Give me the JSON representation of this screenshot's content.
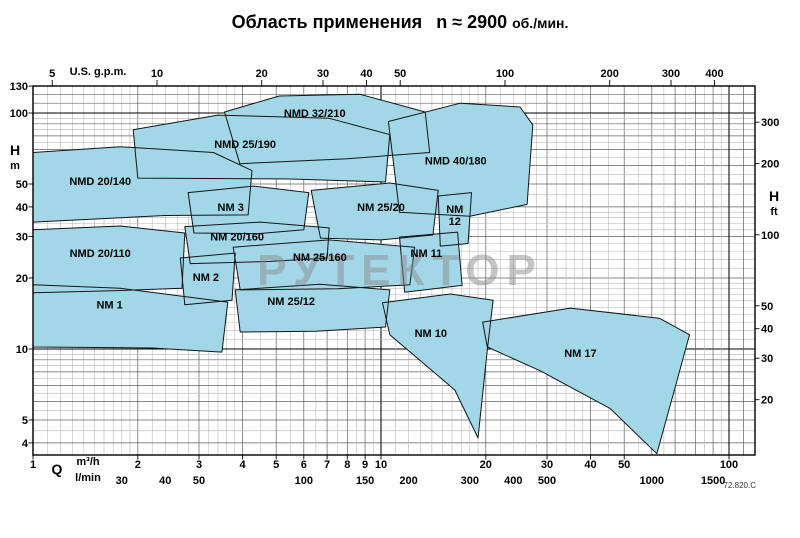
{
  "title": {
    "text": "Область применения",
    "speed": "n ≈ 2900",
    "speed_unit": "об./мин."
  },
  "footnote": "72.820.C",
  "watermark": "РУТЕКТОР",
  "colors": {
    "region_fill": "#a2d7e8",
    "region_stroke": "#141414",
    "watermark": "#8d8d8d",
    "grid_major": "#000000",
    "grid_minor": "#b5b5b5"
  },
  "chart_data": {
    "type": "area",
    "title": "Область применения n ≈ 2900 об./мин.",
    "grid": "log-log, on",
    "x_axis": {
      "quantity": "Q",
      "scale": "log",
      "range_m3h": [
        1,
        119
      ],
      "scales": [
        {
          "unit": "U.S. g.p.m.",
          "position": "top",
          "to_m3h": 0.2271,
          "ticks": [
            5,
            10,
            20,
            30,
            40,
            50,
            100,
            200,
            300,
            400
          ]
        },
        {
          "unit": "m³/h",
          "position": "bottom",
          "to_m3h": 1,
          "ticks": [
            1,
            2,
            3,
            4,
            5,
            6,
            7,
            8,
            9,
            10,
            20,
            30,
            40,
            50,
            100
          ]
        },
        {
          "unit": "l/min",
          "position": "bottom2",
          "to_m3h": 0.06,
          "ticks": [
            30,
            40,
            50,
            100,
            150,
            200,
            300,
            400,
            500,
            1000,
            1500
          ]
        }
      ]
    },
    "y_axis": {
      "quantity": "H",
      "scale": "log",
      "range_m": [
        3.55,
        130
      ],
      "scales": [
        {
          "unit": "m",
          "position": "left",
          "to_m": 1,
          "ticks": [
            130,
            100,
            50,
            40,
            30,
            20,
            10,
            5,
            4
          ]
        },
        {
          "unit": "ft",
          "position": "right",
          "to_m": 0.3048,
          "ticks": [
            300,
            200,
            100,
            50,
            40,
            30,
            20
          ]
        }
      ]
    },
    "regions": [
      {
        "name": "NMD 25/190",
        "label_at": [
          4.07,
          74
        ],
        "points": [
          [
            1.94,
            85
          ],
          [
            3.4,
            98
          ],
          [
            7.1,
            95
          ],
          [
            10.6,
            81
          ],
          [
            10.3,
            51
          ],
          [
            5.5,
            52.5
          ],
          [
            2.0,
            53
          ]
        ]
      },
      {
        "name": "NMD 32/210",
        "label_at": [
          6.45,
          100
        ],
        "points": [
          [
            3.55,
            101
          ],
          [
            5.1,
            118
          ],
          [
            8.7,
            120
          ],
          [
            13.4,
            101
          ],
          [
            13.8,
            68
          ],
          [
            8.0,
            64
          ],
          [
            3.93,
            61
          ]
        ]
      },
      {
        "name": "NMD 40/180",
        "label_at": [
          16.4,
          63
        ],
        "points": [
          [
            10.5,
            92
          ],
          [
            16.9,
            110
          ],
          [
            25.1,
            106
          ],
          [
            27.3,
            89
          ],
          [
            26.3,
            41
          ],
          [
            18,
            36.5
          ],
          [
            11.3,
            38
          ]
        ]
      },
      {
        "name": "NMD 20/140",
        "label_at": [
          1.56,
          51.5
        ],
        "points": [
          [
            1,
            68
          ],
          [
            1.78,
            72
          ],
          [
            3.3,
            68
          ],
          [
            4.26,
            57
          ],
          [
            4.15,
            37
          ],
          [
            2.4,
            36.8
          ],
          [
            1,
            34.5
          ]
        ]
      },
      {
        "name": "NM 3",
        "label_at": [
          3.7,
          40
        ],
        "points": [
          [
            2.79,
            46
          ],
          [
            4.3,
            49
          ],
          [
            6.2,
            46
          ],
          [
            6.0,
            32
          ],
          [
            4.4,
            30.8
          ],
          [
            2.9,
            31
          ]
        ]
      },
      {
        "name": "NM 25/20",
        "label_at": [
          10,
          40
        ],
        "points": [
          [
            6.3,
            47
          ],
          [
            10.6,
            50.5
          ],
          [
            14.6,
            47
          ],
          [
            14.1,
            30.4
          ],
          [
            10,
            29
          ],
          [
            6.7,
            29.5
          ]
        ]
      },
      {
        "name": "NM 12",
        "label_lines": [
          "NM",
          "12"
        ],
        "label_at": [
          16.3,
          37
        ],
        "points": [
          [
            14.6,
            44.5
          ],
          [
            18.2,
            46
          ],
          [
            17.8,
            28
          ],
          [
            14.8,
            27.3
          ]
        ]
      },
      {
        "name": "NM 20/160",
        "label_at": [
          3.86,
          30
        ],
        "points": [
          [
            2.73,
            33
          ],
          [
            4.5,
            34.5
          ],
          [
            7.1,
            32.6
          ],
          [
            7.0,
            24.3
          ],
          [
            4.8,
            23.5
          ],
          [
            2.83,
            23
          ]
        ]
      },
      {
        "name": "NMD 20/110",
        "label_at": [
          1.56,
          25.5
        ],
        "points": [
          [
            1,
            32
          ],
          [
            1.78,
            33.2
          ],
          [
            2.73,
            31
          ],
          [
            2.68,
            18.1
          ],
          [
            1.8,
            17.7
          ],
          [
            1,
            17.3
          ]
        ]
      },
      {
        "name": "NM 25/160",
        "label_at": [
          6.67,
          24.5
        ],
        "points": [
          [
            3.76,
            27
          ],
          [
            7.1,
            29
          ],
          [
            12.5,
            27
          ],
          [
            12.1,
            18.7
          ],
          [
            7.5,
            18
          ],
          [
            3.94,
            17.8
          ]
        ]
      },
      {
        "name": "NM 11",
        "label_at": [
          13.5,
          25.5
        ],
        "points": [
          [
            11.3,
            29.8
          ],
          [
            16.6,
            31.3
          ],
          [
            17.1,
            18.6
          ],
          [
            11.7,
            17.4
          ]
        ]
      },
      {
        "name": "NM 2",
        "label_at": [
          3.14,
          20.2
        ],
        "points": [
          [
            2.65,
            24.3
          ],
          [
            3.81,
            25.5
          ],
          [
            3.73,
            16.1
          ],
          [
            2.73,
            15.4
          ]
        ]
      },
      {
        "name": "NM 25/12",
        "label_at": [
          5.52,
          16
        ],
        "points": [
          [
            3.81,
            17.8
          ],
          [
            6.67,
            18.8
          ],
          [
            10.6,
            17.8
          ],
          [
            10.3,
            12.4
          ],
          [
            6.5,
            11.9
          ],
          [
            3.94,
            11.8
          ]
        ]
      },
      {
        "name": "NM 1",
        "label_at": [
          1.66,
          15.4
        ],
        "points": [
          [
            1,
            18.7
          ],
          [
            1.78,
            18.1
          ],
          [
            3.63,
            15.8
          ],
          [
            3.49,
            9.7
          ],
          [
            2.2,
            10.1
          ],
          [
            1,
            10.2
          ]
        ]
      },
      {
        "name": "NM 10",
        "label_at": [
          13.9,
          11.7
        ],
        "points": [
          [
            10.1,
            15.7
          ],
          [
            15.8,
            17.1
          ],
          [
            21,
            16.1
          ],
          [
            20.2,
            9.9
          ],
          [
            19,
            4.2
          ],
          [
            16.3,
            6.7
          ],
          [
            10.6,
            11.5
          ]
        ]
      },
      {
        "name": "NM 17",
        "label_at": [
          37.4,
          9.6
        ],
        "points": [
          [
            19.6,
            13
          ],
          [
            35,
            14.9
          ],
          [
            63,
            13.5
          ],
          [
            77,
            11.5
          ],
          [
            71,
            7.4
          ],
          [
            62,
            3.6
          ],
          [
            45.5,
            5.6
          ],
          [
            28.6,
            8.1
          ],
          [
            20.2,
            10.2
          ]
        ]
      }
    ]
  }
}
